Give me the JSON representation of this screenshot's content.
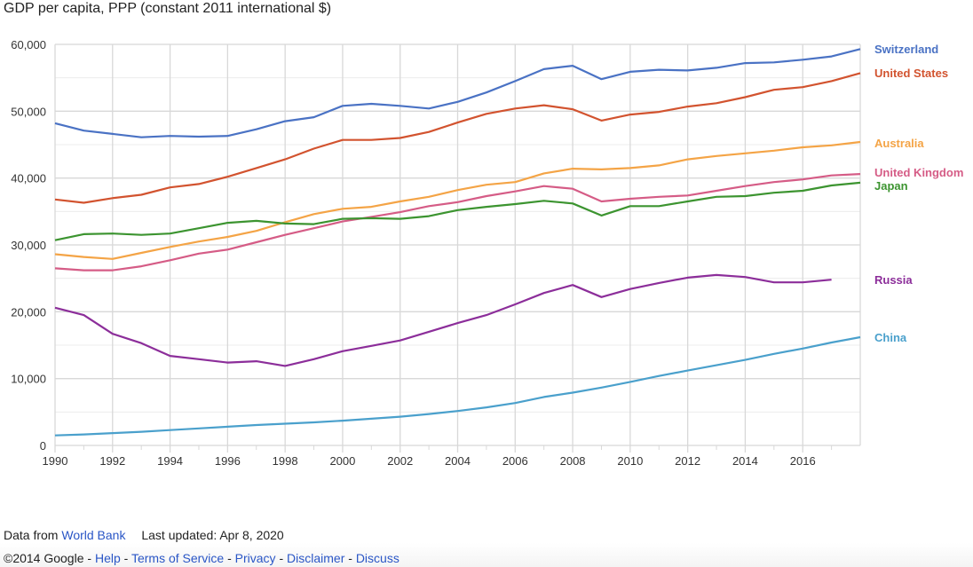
{
  "chart_data": {
    "type": "line",
    "title": "GDP per capita, PPP (constant 2011 international $)",
    "xlim": [
      1990,
      2018
    ],
    "ylim": [
      0,
      60000
    ],
    "x_ticks": [
      "1990",
      "1992",
      "1994",
      "1996",
      "1998",
      "2000",
      "2002",
      "2004",
      "2006",
      "2008",
      "2010",
      "2012",
      "2014",
      "2016"
    ],
    "y_ticks": [
      "0",
      "10,000",
      "20,000",
      "30,000",
      "40,000",
      "50,000",
      "60,000"
    ],
    "grid": true,
    "legend": "right (labels at line ends)",
    "x": [
      1990,
      1991,
      1992,
      1993,
      1994,
      1995,
      1996,
      1997,
      1998,
      1999,
      2000,
      2001,
      2002,
      2003,
      2004,
      2005,
      2006,
      2007,
      2008,
      2009,
      2010,
      2011,
      2012,
      2013,
      2014,
      2015,
      2016,
      2017,
      2018
    ],
    "series": [
      {
        "name": "Switzerland",
        "color": "#4a72c4",
        "values": [
          48200,
          47100,
          46600,
          46100,
          46300,
          46200,
          46300,
          47300,
          48500,
          49100,
          50800,
          51100,
          50800,
          50400,
          51400,
          52800,
          54500,
          56300,
          56800,
          54800,
          55900,
          56200,
          56100,
          56500,
          57200,
          57300,
          57700,
          58200,
          59300
        ]
      },
      {
        "name": "United States",
        "color": "#d2532f",
        "values": [
          36800,
          36300,
          37000,
          37500,
          38600,
          39100,
          40200,
          41500,
          42800,
          44400,
          45700,
          45700,
          46000,
          46900,
          48300,
          49600,
          50400,
          50900,
          50300,
          48600,
          49500,
          49900,
          50700,
          51200,
          52100,
          53200,
          53600,
          54500,
          55700
        ]
      },
      {
        "name": "Australia",
        "color": "#f4a446",
        "values": [
          28600,
          28200,
          27900,
          28800,
          29700,
          30500,
          31200,
          32100,
          33400,
          34600,
          35400,
          35700,
          36500,
          37200,
          38200,
          39000,
          39400,
          40700,
          41400,
          41300,
          41500,
          41900,
          42800,
          43300,
          43700,
          44100,
          44600,
          44900,
          45400
        ]
      },
      {
        "name": "United Kingdom",
        "color": "#d55c86",
        "values": [
          26500,
          26200,
          26200,
          26800,
          27700,
          28700,
          29300,
          30400,
          31500,
          32500,
          33500,
          34200,
          34900,
          35800,
          36400,
          37300,
          38000,
          38800,
          38400,
          36500,
          36900,
          37200,
          37400,
          38100,
          38800,
          39400,
          39800,
          40400,
          40600
        ]
      },
      {
        "name": "Japan",
        "color": "#3c9430",
        "values": [
          30700,
          31600,
          31700,
          31500,
          31700,
          32500,
          33300,
          33600,
          33200,
          33100,
          33900,
          34000,
          33900,
          34300,
          35200,
          35700,
          36100,
          36600,
          36200,
          34400,
          35800,
          35800,
          36500,
          37200,
          37300,
          37800,
          38100,
          38900,
          39300
        ]
      },
      {
        "name": "Russia",
        "color": "#8c2e9a",
        "values": [
          20600,
          19500,
          16700,
          15300,
          13400,
          12900,
          12400,
          12600,
          11900,
          12900,
          14100,
          14900,
          15700,
          17000,
          18300,
          19500,
          21100,
          22800,
          24000,
          22200,
          23400,
          24300,
          25100,
          25500,
          25200,
          24400,
          24400,
          24800,
          null
        ]
      },
      {
        "name": "China",
        "color": "#4aa0cc",
        "values": [
          1500,
          1650,
          1850,
          2050,
          2300,
          2550,
          2800,
          3050,
          3250,
          3450,
          3700,
          4000,
          4300,
          4700,
          5150,
          5700,
          6350,
          7250,
          7900,
          8650,
          9500,
          10400,
          11200,
          12000,
          12800,
          13700,
          14500,
          15400,
          16200
        ]
      }
    ]
  },
  "footer": {
    "data_from": "Data from",
    "source": "World Bank",
    "last_updated": "Last updated: Apr 8, 2020",
    "copyright": "©2014 Google",
    "sep": " - ",
    "links": [
      "Help",
      "Terms of Service",
      "Privacy",
      "Disclaimer",
      "Discuss"
    ]
  }
}
